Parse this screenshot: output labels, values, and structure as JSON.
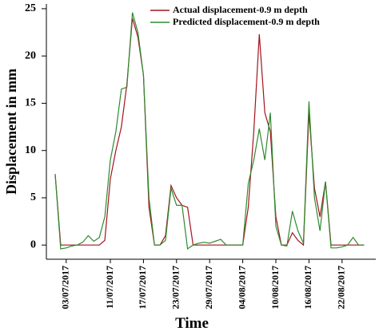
{
  "chart_data": {
    "type": "line",
    "x_label": "Time",
    "y_label": "Displacement in mm",
    "categories": [
      null,
      null,
      "03/07/2017",
      null,
      null,
      null,
      null,
      null,
      null,
      null,
      "11/07/2017",
      null,
      null,
      null,
      null,
      null,
      "17/07/2017",
      null,
      null,
      null,
      null,
      null,
      "23/07/2017",
      null,
      null,
      null,
      null,
      null,
      "29/07/2017",
      null,
      null,
      null,
      null,
      null,
      "04/08/2017",
      null,
      null,
      null,
      null,
      null,
      "10/08/2017",
      null,
      null,
      null,
      null,
      null,
      "16/08/2017",
      null,
      null,
      null,
      null,
      null,
      "22/08/2017",
      null,
      null,
      null,
      null
    ],
    "series": [
      {
        "name": "Actual displacement-0.9 m depth",
        "color": "#a0141e",
        "values": [
          7.5,
          0,
          0,
          0,
          0,
          0,
          0,
          0,
          0,
          0.5,
          7,
          10,
          12.5,
          17,
          24,
          22,
          18,
          4,
          0,
          0,
          1,
          6.3,
          5,
          4.2,
          4,
          0,
          0,
          0,
          0,
          0,
          0,
          0,
          0,
          0,
          0,
          4,
          12,
          22.3,
          14,
          12,
          3,
          0,
          0,
          1.3,
          0.5,
          0,
          14,
          6,
          3,
          6.7,
          0,
          0,
          0,
          0,
          0,
          0,
          0
        ]
      },
      {
        "name": "Predicted displacement-0.9 m depth",
        "color": "#2e8b2e",
        "values": [
          7.5,
          -0.4,
          -0.3,
          -0.1,
          0,
          0.3,
          1,
          0.4,
          0.8,
          3,
          9,
          12,
          16.5,
          16.7,
          24.6,
          22.5,
          18,
          5,
          0,
          0,
          0.5,
          6,
          4.2,
          4.2,
          -0.4,
          0,
          0.2,
          0.3,
          0.2,
          0.4,
          0.6,
          0,
          0,
          0,
          0,
          6.5,
          9,
          12.3,
          9,
          14,
          2,
          0,
          -0.1,
          3.6,
          1.5,
          0.2,
          15.2,
          5,
          1.5,
          6.7,
          -0.3,
          -0.3,
          -0.2,
          0,
          0.8,
          0,
          0
        ]
      }
    ],
    "ylim": [
      -1.5,
      25.5
    ],
    "yticks": [
      0,
      5,
      10,
      15,
      20,
      25
    ],
    "grid": false,
    "legend": "top-right"
  }
}
